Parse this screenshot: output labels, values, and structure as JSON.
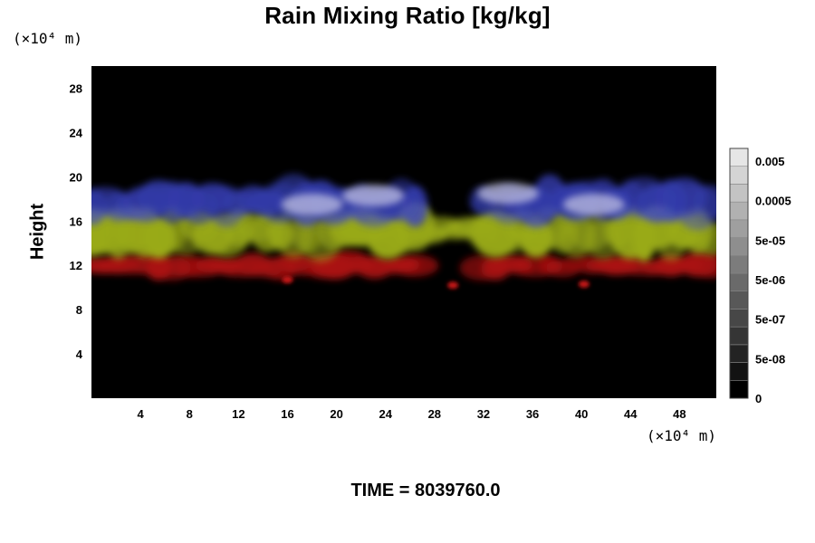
{
  "chart_data": {
    "type": "heatmap",
    "title": "Rain Mixing Ratio [kg/kg]",
    "ylabel": "Height",
    "x_unit": "(×10⁴ m)",
    "y_unit": "(×10⁴ m)",
    "xlim": [
      0,
      51
    ],
    "ylim": [
      0,
      30
    ],
    "x_ticks": [
      "4",
      "8",
      "12",
      "16",
      "20",
      "24",
      "28",
      "32",
      "36",
      "40",
      "44",
      "48"
    ],
    "y_ticks": [
      "4",
      "8",
      "12",
      "16",
      "20",
      "24",
      "28"
    ],
    "colorbar": {
      "labels": [
        "0.005",
        "0.0005",
        "5e-05",
        "5e-06",
        "5e-07",
        "5e-08",
        "0"
      ]
    },
    "background_color": "#000000",
    "layers": [
      {
        "color": "#c81414",
        "height_range": [
          11,
          13
        ]
      },
      {
        "color": "#b4c81e",
        "height_range": [
          13,
          17
        ]
      },
      {
        "color": "#3c46c8",
        "height_range": [
          16,
          19.5
        ]
      }
    ]
  },
  "footer": {
    "time_label": "TIME = 8039760.0"
  }
}
